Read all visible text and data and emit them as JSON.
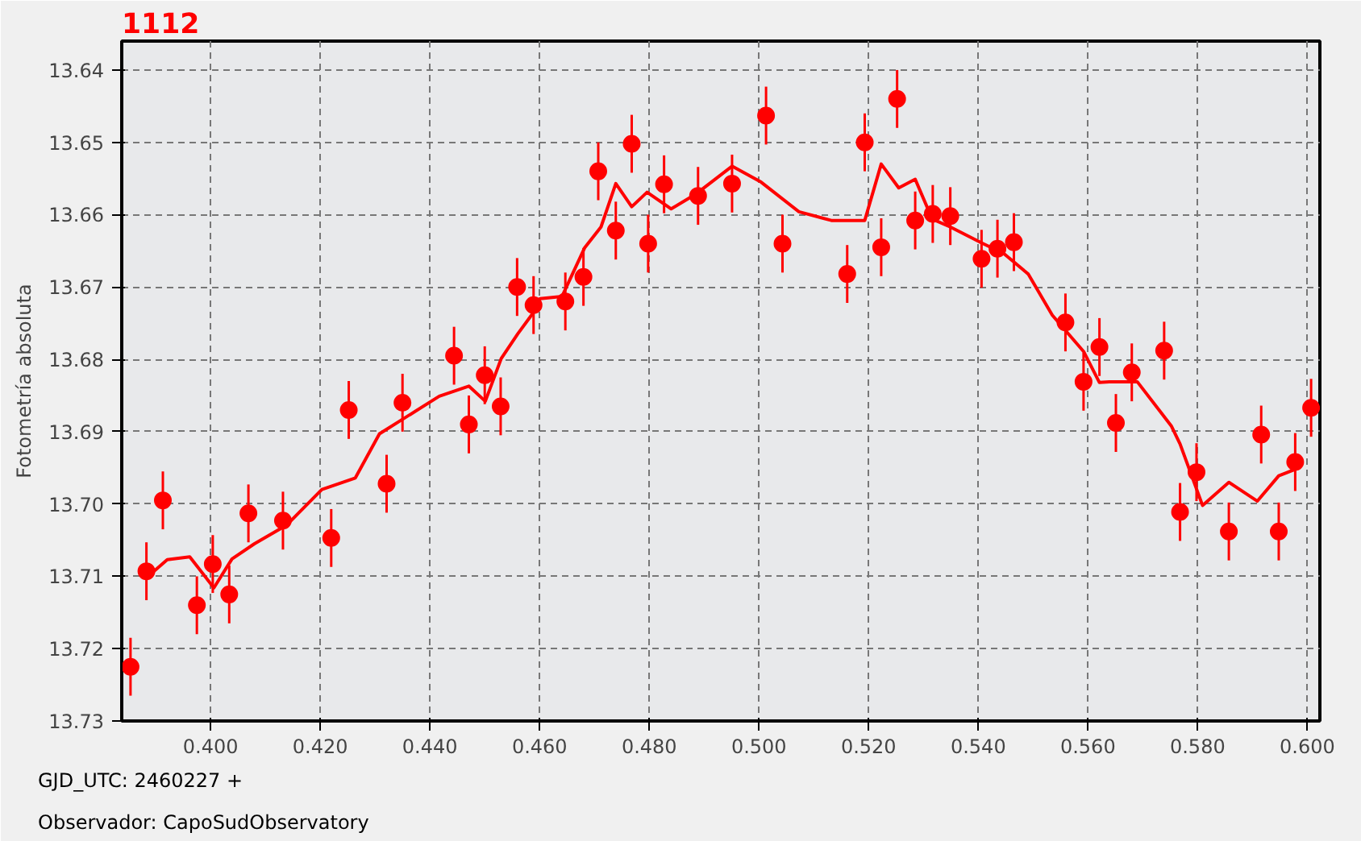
{
  "chart_data": {
    "type": "scatter",
    "title": "1112",
    "ylabel": "Fotometría absoluta",
    "annotations": [
      "GJD_UTC: 2460227 +",
      "Observador: CapoSudObservatory"
    ],
    "xlim": [
      0.3838,
      0.6023
    ],
    "ylim": [
      13.73,
      13.636
    ],
    "xticks": [
      {
        "value": 0.4,
        "label": "0.400"
      },
      {
        "value": 0.42,
        "label": "0.420"
      },
      {
        "value": 0.44,
        "label": "0.440"
      },
      {
        "value": 0.46,
        "label": "0.460"
      },
      {
        "value": 0.48,
        "label": "0.480"
      },
      {
        "value": 0.5,
        "label": "0.500"
      },
      {
        "value": 0.52,
        "label": "0.520"
      },
      {
        "value": 0.54,
        "label": "0.540"
      },
      {
        "value": 0.56,
        "label": "0.560"
      },
      {
        "value": 0.58,
        "label": "0.580"
      },
      {
        "value": 0.6,
        "label": "0.600"
      }
    ],
    "yticks": [
      13.64,
      13.65,
      13.66,
      13.67,
      13.68,
      13.69,
      {
        "value": 13.7,
        "label": "13.70"
      },
      13.71,
      13.72,
      13.73
    ],
    "grid": true,
    "series": [
      {
        "color": "#ff0000",
        "marker": "circle",
        "x": [
          0.3854,
          0.3883,
          0.3913,
          0.3975,
          0.4004,
          0.4034,
          0.4069,
          0.4132,
          0.422,
          0.4252,
          0.4321,
          0.435,
          0.4444,
          0.4471,
          0.45,
          0.4529,
          0.4559,
          0.4589,
          0.4647,
          0.468,
          0.4707,
          0.4739,
          0.4768,
          0.4798,
          0.4827,
          0.4889,
          0.4951,
          0.5013,
          0.5043,
          0.5161,
          0.5193,
          0.5223,
          0.5252,
          0.5285,
          0.5317,
          0.5349,
          0.5406,
          0.5435,
          0.5465,
          0.5559,
          0.5592,
          0.5621,
          0.5651,
          0.568,
          0.5739,
          0.5768,
          0.5798,
          0.5857,
          0.5916,
          0.5948,
          0.5978,
          0.6007
        ],
        "values": [
          13.7225,
          13.7093,
          13.6995,
          13.714,
          13.7083,
          13.7125,
          13.7013,
          13.7023,
          13.7047,
          13.687,
          13.6972,
          13.686,
          13.6795,
          13.689,
          13.6822,
          13.6865,
          13.67,
          13.6725,
          13.672,
          13.6686,
          13.654,
          13.6622,
          13.6502,
          13.664,
          13.6558,
          13.6574,
          13.6557,
          13.6463,
          13.664,
          13.6682,
          13.65,
          13.6645,
          13.644,
          13.6608,
          13.6599,
          13.6602,
          13.6661,
          13.6647,
          13.6638,
          13.6749,
          13.6831,
          13.6783,
          13.6888,
          13.6818,
          13.6788,
          13.7011,
          13.6956,
          13.7038,
          13.6904,
          13.7038,
          13.6942,
          13.6867
        ],
        "errors": [
          0.004,
          0.004,
          0.004,
          0.004,
          0.004,
          0.004,
          0.004,
          0.004,
          0.004,
          0.004,
          0.004,
          0.004,
          0.004,
          0.004,
          0.004,
          0.004,
          0.004,
          0.004,
          0.004,
          0.004,
          0.004,
          0.004,
          0.004,
          0.004,
          0.004,
          0.004,
          0.004,
          0.004,
          0.004,
          0.004,
          0.004,
          0.004,
          0.004,
          0.004,
          0.004,
          0.004,
          0.004,
          0.004,
          0.004,
          0.004,
          0.004,
          0.004,
          0.004,
          0.004,
          0.004,
          0.004,
          0.004,
          0.004,
          0.004,
          0.004,
          0.004,
          0.004
        ]
      },
      {
        "type": "line",
        "color": "#ff0000",
        "line_style": "solid",
        "x": [
          0.3883,
          0.3921,
          0.3962,
          0.4006,
          0.4039,
          0.408,
          0.4139,
          0.4203,
          0.4264,
          0.4308,
          0.4417,
          0.4471,
          0.4501,
          0.453,
          0.456,
          0.4589,
          0.4601,
          0.4641,
          0.4682,
          0.4712,
          0.4739,
          0.4768,
          0.4796,
          0.484,
          0.4886,
          0.4951,
          0.5004,
          0.5073,
          0.5132,
          0.5193,
          0.5223,
          0.5255,
          0.5285,
          0.5316,
          0.5349,
          0.5406,
          0.5447,
          0.5491,
          0.5535,
          0.5592,
          0.5621,
          0.5639,
          0.569,
          0.5752,
          0.5768,
          0.5809,
          0.5857,
          0.5909,
          0.5948,
          0.5978
        ],
        "values": [
          13.7102,
          13.7077,
          13.7073,
          13.7116,
          13.7076,
          13.7055,
          13.7029,
          13.698,
          13.6964,
          13.6903,
          13.6851,
          13.6837,
          13.6858,
          13.6799,
          13.6765,
          13.6735,
          13.6716,
          13.6713,
          13.6646,
          13.6617,
          13.6557,
          13.6589,
          13.6569,
          13.6592,
          13.6571,
          13.6533,
          13.6555,
          13.6596,
          13.6608,
          13.6608,
          13.653,
          13.6563,
          13.6551,
          13.6606,
          13.6617,
          13.6639,
          13.6654,
          13.6682,
          13.6739,
          13.6789,
          13.6832,
          13.6831,
          13.6831,
          13.6892,
          13.6917,
          13.7002,
          13.697,
          13.6996,
          13.6961,
          13.6952
        ]
      }
    ]
  }
}
